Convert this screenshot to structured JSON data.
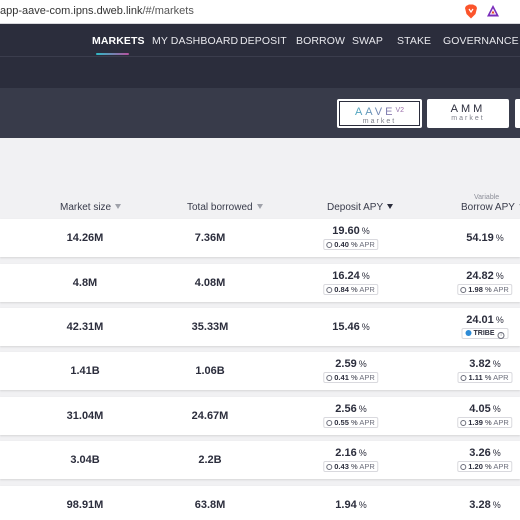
{
  "browser": {
    "url_main": "app-aave-com.ipns.dweb.link",
    "url_path": "/#/markets"
  },
  "nav": {
    "items": [
      "MARKETS",
      "MY DASHBOARD",
      "DEPOSIT",
      "BORROW",
      "SWAP",
      "STAKE",
      "GOVERNANCE"
    ],
    "active": "MARKETS"
  },
  "market_selector": {
    "aave": {
      "name": "AAVE",
      "version": "V2",
      "sub": "market",
      "selected": true
    },
    "amm": {
      "name": "AMM",
      "sub": "market"
    }
  },
  "table": {
    "headers": {
      "market_size": "Market size",
      "total_borrowed": "Total borrowed",
      "deposit_apy": "Deposit APY",
      "borrow_apy": "Borrow APY",
      "borrow_apy_note": "Variable"
    },
    "rows": [
      {
        "market_size": "14.26M",
        "total_borrowed": "7.36M",
        "deposit_apy": "19.60",
        "deposit_apr": "0.40",
        "borrow_apy": "54.19",
        "borrow_apr": ""
      },
      {
        "market_size": "4.8M",
        "total_borrowed": "4.08M",
        "deposit_apy": "16.24",
        "deposit_apr": "0.84",
        "borrow_apy": "24.82",
        "borrow_apr": "1.98"
      },
      {
        "market_size": "42.31M",
        "total_borrowed": "35.33M",
        "deposit_apy": "15.46",
        "deposit_apr": "",
        "borrow_apy": "24.01",
        "borrow_apr": "",
        "borrow_incentive": "TRIBE"
      },
      {
        "market_size": "1.41B",
        "total_borrowed": "1.06B",
        "deposit_apy": "2.59",
        "deposit_apr": "0.41",
        "borrow_apy": "3.82",
        "borrow_apr": "1.11"
      },
      {
        "market_size": "31.04M",
        "total_borrowed": "24.67M",
        "deposit_apy": "2.56",
        "deposit_apr": "0.55",
        "borrow_apy": "4.05",
        "borrow_apr": "1.39"
      },
      {
        "market_size": "3.04B",
        "total_borrowed": "2.2B",
        "deposit_apy": "2.16",
        "deposit_apr": "0.43",
        "borrow_apy": "3.26",
        "borrow_apr": "1.20"
      },
      {
        "market_size": "98.91M",
        "total_borrowed": "63.8M",
        "deposit_apy": "1.94",
        "deposit_apr": "",
        "borrow_apy": "3.28",
        "borrow_apr": ""
      }
    ],
    "pct_symbol": "%",
    "apr_label": "APR"
  },
  "colors": {
    "nav_bg": "#2b2d3c",
    "band_bg": "#383b4a",
    "accent_start": "#2ebac6",
    "accent_end": "#b6509e",
    "page_bg": "#f1f1f3"
  }
}
